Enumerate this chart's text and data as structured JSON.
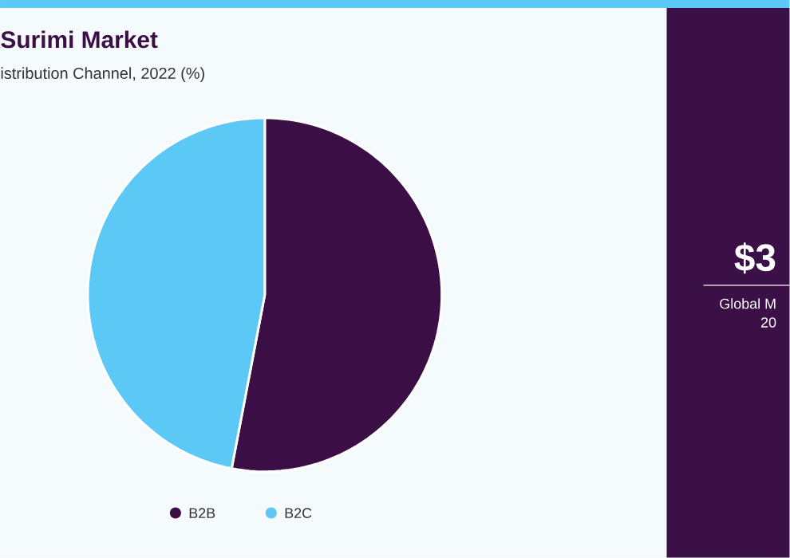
{
  "chart_data": {
    "type": "pie",
    "title": "Surimi Market",
    "subtitle": "istribution Channel, 2022 (%)",
    "categories": [
      "B2B",
      "B2C"
    ],
    "values": [
      53,
      47
    ],
    "colors": [
      "#3b0f45",
      "#5bc8f5"
    ],
    "legend": "bottom",
    "annotations": [
      "$3",
      "Global M",
      "20"
    ]
  }
}
